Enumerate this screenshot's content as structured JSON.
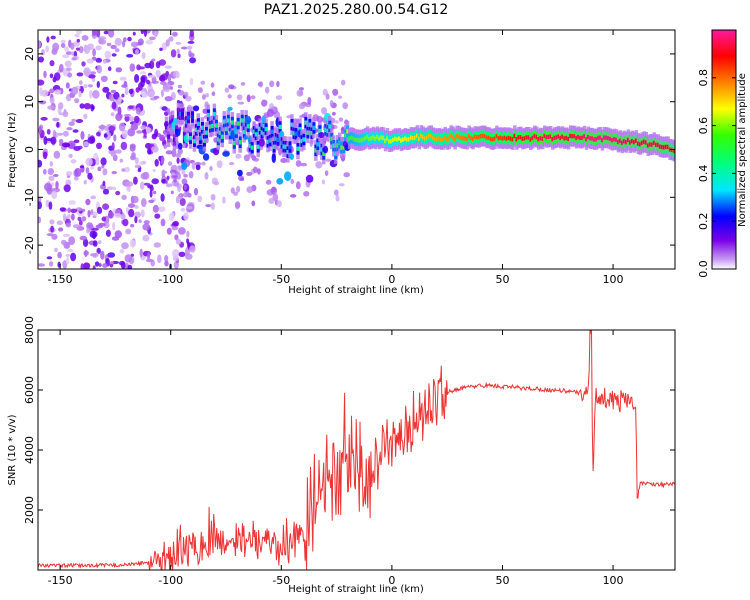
{
  "title": "PAZ1.2025.280.00.54.G12",
  "chart_data": [
    {
      "type": "heatmap",
      "title": "PAZ1.2025.280.00.54.G12",
      "xlabel": "Height of straight line (km)",
      "ylabel": "Frequency (Hz)",
      "xlim": [
        -160,
        128
      ],
      "ylim": [
        -25,
        25
      ],
      "x_ticks": [
        -150,
        -100,
        -50,
        0,
        50,
        100
      ],
      "y_ticks": [
        -20,
        -10,
        0,
        10,
        20
      ],
      "colorbar": {
        "label": "Normalized spectral amplitude",
        "range": [
          0,
          1
        ],
        "ticks": [
          0.0,
          0.2,
          0.4,
          0.6,
          0.8
        ]
      },
      "ridge": {
        "x": [
          -100,
          -90,
          -80,
          -70,
          -60,
          -50,
          -40,
          -30,
          -20,
          -10,
          0,
          10,
          20,
          30,
          40,
          50,
          60,
          70,
          80,
          90,
          100,
          110,
          120,
          128
        ],
        "freq_hz": [
          5,
          4.5,
          4.5,
          4,
          3,
          2,
          3,
          2,
          2,
          2.5,
          2,
          2.5,
          2.5,
          2.5,
          2.5,
          2.5,
          2.5,
          2.5,
          2.5,
          2.5,
          2,
          1.5,
          1,
          0
        ],
        "amplitude": [
          0.15,
          0.35,
          0.45,
          0.45,
          0.4,
          0.35,
          0.4,
          0.45,
          0.55,
          0.6,
          0.65,
          0.7,
          0.75,
          0.78,
          0.82,
          0.85,
          0.92,
          0.95,
          0.9,
          0.95,
          0.95,
          0.9,
          0.92,
          0.85
        ]
      },
      "noise_region": "x < -100, scattered across all frequencies"
    },
    {
      "type": "line",
      "title": "",
      "xlabel": "Height of straight line (km)",
      "ylabel": "SNR (10 * v/v)",
      "xlim": [
        -160,
        128
      ],
      "ylim": [
        0,
        8000
      ],
      "x_ticks": [
        -150,
        -100,
        -50,
        0,
        50,
        100
      ],
      "y_ticks": [
        2000,
        4000,
        6000,
        8000
      ],
      "series": [
        {
          "name": "SNR",
          "color": "#ee3333",
          "x": [
            -160,
            -140,
            -120,
            -110,
            -100,
            -95,
            -90,
            -85,
            -80,
            -75,
            -70,
            -65,
            -60,
            -55,
            -50,
            -45,
            -40,
            -35,
            -30,
            -25,
            -20,
            -15,
            -10,
            -5,
            0,
            5,
            10,
            15,
            20,
            25,
            30,
            35,
            40,
            45,
            50,
            55,
            60,
            65,
            70,
            75,
            80,
            85,
            88,
            90,
            91,
            92,
            95,
            100,
            105,
            108,
            110,
            111,
            112,
            115,
            120,
            128
          ],
          "y": [
            150,
            150,
            170,
            250,
            400,
            600,
            800,
            900,
            1000,
            950,
            1000,
            1050,
            900,
            850,
            800,
            900,
            1500,
            2000,
            2600,
            3000,
            3500,
            3400,
            3600,
            4000,
            4200,
            4500,
            5000,
            5400,
            5700,
            5900,
            6050,
            6100,
            6150,
            6150,
            6100,
            6100,
            6050,
            6050,
            6000,
            6000,
            5950,
            5900,
            5800,
            7000,
            3300,
            5800,
            5700,
            5650,
            5600,
            5700,
            5650,
            3100,
            2900,
            2900,
            2850,
            2850
          ]
        }
      ]
    }
  ]
}
